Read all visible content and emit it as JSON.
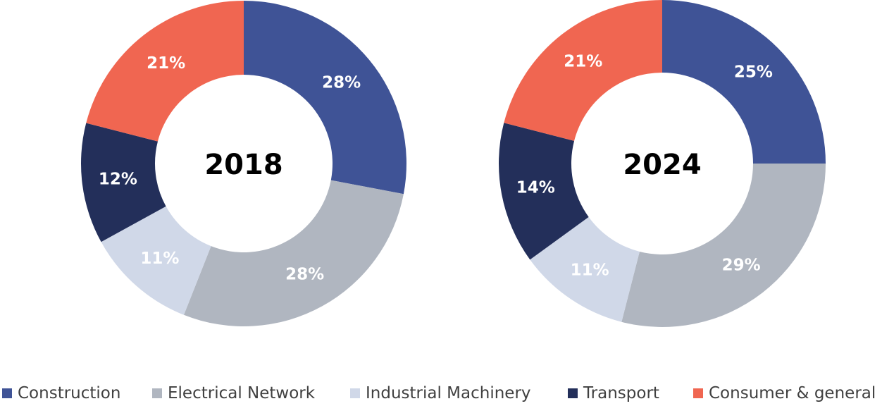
{
  "colors": {
    "Construction": "#3F5396",
    "Electrical Network": "#B0B6C0",
    "Industrial Machinery": "#D0D8E8",
    "Transport": "#232F5A",
    "Consumer & general": "#F06651",
    "label_light": "#FFFFFF",
    "label_dark": "#FFFFFF"
  },
  "chart_data": [
    {
      "type": "pie",
      "title": "2018",
      "categories": [
        "Construction",
        "Electrical Network",
        "Industrial Machinery",
        "Transport",
        "Consumer & general"
      ],
      "values": [
        28,
        28,
        11,
        12,
        21
      ],
      "labels": [
        "28%",
        "28%",
        "11%",
        "12%",
        "21%"
      ]
    },
    {
      "type": "pie",
      "title": "2024",
      "categories": [
        "Construction",
        "Electrical Network",
        "Industrial Machinery",
        "Transport",
        "Consumer & general"
      ],
      "values": [
        25,
        29,
        11,
        14,
        21
      ],
      "labels": [
        "25%",
        "29%",
        "11%",
        "14%",
        "21%"
      ]
    }
  ],
  "legend": {
    "placement": "bottom",
    "items": [
      "Construction",
      "Electrical Network",
      "Industrial Machinery",
      "Transport",
      "Consumer & general"
    ]
  }
}
